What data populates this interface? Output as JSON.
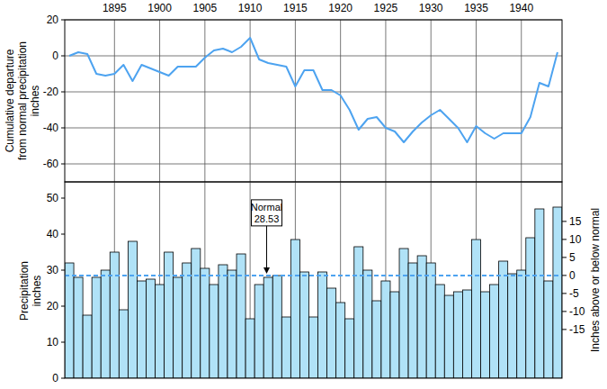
{
  "chart_data": [
    {
      "type": "line",
      "ylabel": [
        "Cumulative departure",
        "from normal precipitation",
        "inches"
      ],
      "x": [
        1890,
        1891,
        1892,
        1893,
        1894,
        1895,
        1896,
        1897,
        1898,
        1899,
        1900,
        1901,
        1902,
        1903,
        1904,
        1905,
        1906,
        1907,
        1908,
        1909,
        1910,
        1911,
        1912,
        1913,
        1914,
        1915,
        1916,
        1917,
        1918,
        1919,
        1920,
        1921,
        1922,
        1923,
        1924,
        1925,
        1926,
        1927,
        1928,
        1929,
        1930,
        1931,
        1932,
        1933,
        1934,
        1935,
        1936,
        1937,
        1938,
        1939,
        1940,
        1941,
        1942,
        1943,
        1944
      ],
      "values": [
        0,
        2,
        1,
        -10,
        -11,
        -10,
        -5,
        -14,
        -5,
        -7,
        -9,
        -11,
        -6,
        -6,
        -6,
        -1,
        3,
        4,
        2,
        5,
        10,
        -2,
        -4,
        -5,
        -6,
        -17,
        -8,
        -8,
        -19,
        -19,
        -22,
        -30,
        -41,
        -35,
        -34,
        -40,
        -42,
        -48,
        -42,
        -37,
        -33,
        -30,
        -35,
        -40,
        -48,
        -39,
        -43,
        -46,
        -43,
        -43,
        -43,
        -34,
        -15,
        -17,
        2
      ],
      "color": "#4da3f0",
      "xlim": [
        1889.5,
        1944.5
      ],
      "xticks": [
        1895,
        1900,
        1905,
        1910,
        1915,
        1920,
        1925,
        1930,
        1935,
        1940
      ],
      "ylim": [
        -70,
        20
      ],
      "yticks": [
        -60,
        -40,
        -20,
        0,
        20
      ],
      "grid": true
    },
    {
      "type": "bar",
      "ylabel": [
        "Precipitation",
        "inches"
      ],
      "y2label": "Inches above or below normal",
      "x": [
        1890,
        1891,
        1892,
        1893,
        1894,
        1895,
        1896,
        1897,
        1898,
        1899,
        1900,
        1901,
        1902,
        1903,
        1904,
        1905,
        1906,
        1907,
        1908,
        1909,
        1910,
        1911,
        1912,
        1913,
        1914,
        1915,
        1916,
        1917,
        1918,
        1919,
        1920,
        1921,
        1922,
        1923,
        1924,
        1925,
        1926,
        1927,
        1928,
        1929,
        1930,
        1931,
        1932,
        1933,
        1934,
        1935,
        1936,
        1937,
        1938,
        1939,
        1940,
        1941,
        1942,
        1943,
        1944
      ],
      "values": [
        32,
        28,
        17.5,
        28,
        30,
        35,
        19,
        38,
        27,
        27.5,
        26,
        35,
        28,
        32,
        36,
        30.5,
        26,
        31.5,
        30,
        34.5,
        16.5,
        26,
        28,
        28.5,
        17,
        38.5,
        29.5,
        17,
        29.5,
        25,
        21,
        16.5,
        36.5,
        30,
        21.5,
        27,
        24,
        36,
        32,
        34,
        32,
        26,
        23,
        24,
        24.5,
        38.5,
        24,
        26,
        32.5,
        29,
        30,
        39,
        47,
        27,
        47.5
      ],
      "color": "#b0e2f7",
      "xlim": [
        1889.5,
        1944.5
      ],
      "xticks": [
        1895,
        1900,
        1905,
        1910,
        1915,
        1920,
        1925,
        1930,
        1935,
        1940
      ],
      "ylim": [
        0,
        54.5
      ],
      "yticks": [
        0,
        10,
        20,
        30,
        40,
        50
      ],
      "y2lim": [
        -28.53,
        25.97
      ],
      "y2ticks": [
        -15,
        -10,
        -5,
        0,
        5,
        10,
        15
      ],
      "grid": "x",
      "tick_labels": "y",
      "annotations": [
        {
          "text": "Normal",
          "value": 28.53,
          "color": "#4da3f0",
          "line_style": "dashed"
        }
      ]
    }
  ]
}
